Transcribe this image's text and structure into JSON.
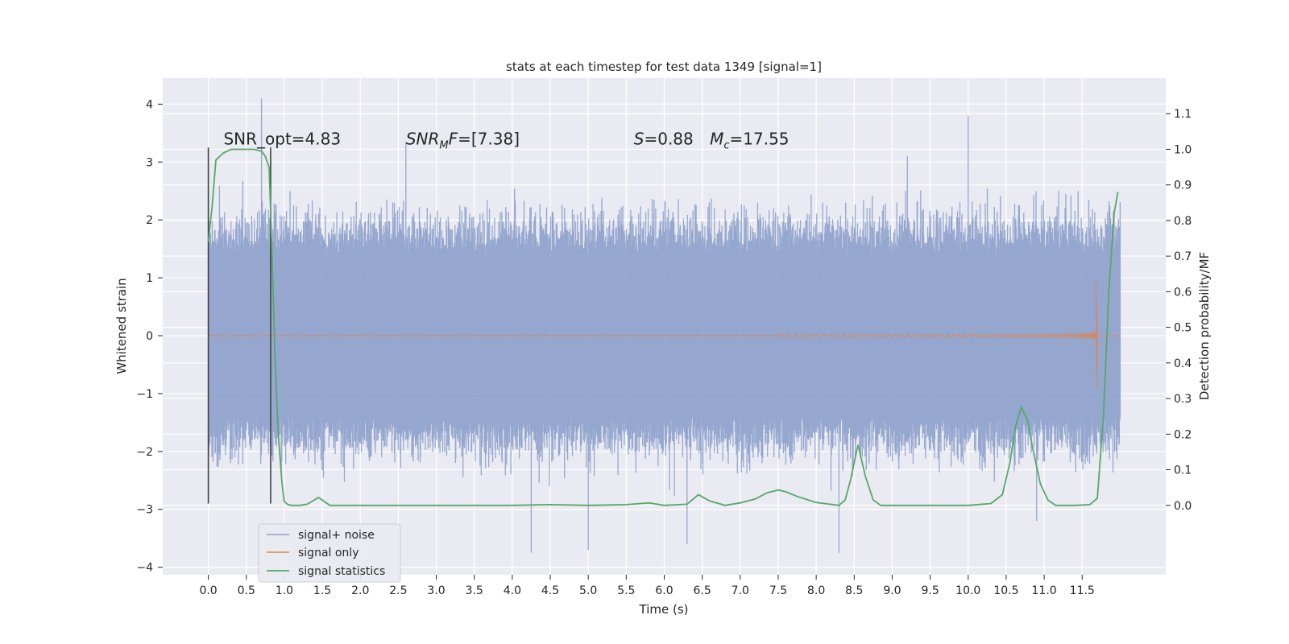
{
  "chart_data": {
    "type": "line",
    "title": "stats at each timestep for test data 1349 [signal=1]",
    "xlabel": "Time (s)",
    "ylabel_left": "Whitened strain",
    "ylabel_right": "Detection probability/MF",
    "xlim": [
      -0.6,
      12.6
    ],
    "ylim_left": [
      -4.13,
      4.45
    ],
    "ylim_right": [
      -0.195,
      1.2
    ],
    "x_ticks": [
      "0.0",
      "0.5",
      "1.0",
      "1.5",
      "2.0",
      "2.5",
      "3.0",
      "3.5",
      "4.0",
      "4.5",
      "5.0",
      "5.5",
      "6.0",
      "6.5",
      "7.0",
      "7.5",
      "8.0",
      "8.5",
      "9.0",
      "9.5",
      "10.0",
      "10.5",
      "11.0",
      "11.5"
    ],
    "y_left_ticks": [
      "−4",
      "−3",
      "−2",
      "−1",
      "0",
      "1",
      "2",
      "3",
      "4"
    ],
    "y_right_ticks": [
      "0.0",
      "0.1",
      "0.2",
      "0.3",
      "0.4",
      "0.5",
      "0.6",
      "0.7",
      "0.8",
      "0.9",
      "1.0",
      "1.1"
    ],
    "grid": true,
    "legend_position": "lower-left",
    "colors": {
      "background": "#eaeaf2",
      "grid": "#ffffff",
      "noise": "#8da0cb",
      "signal": "#dd8452",
      "stats": "#55a868",
      "marker": "#404040"
    },
    "annotations": {
      "snr_opt": "SNR_opt=4.83",
      "snr_mf_base": "SNR",
      "snr_mf_sub": "M",
      "snr_mf_rest": "F=[7.38]",
      "s_label": "S",
      "s_value": "=0.88",
      "mc_label": "M",
      "mc_sub": "c",
      "mc_value": "=17.55"
    },
    "series": [
      {
        "name": "signal+ noise",
        "kind": "strain",
        "x_range": [
          0,
          12.0
        ],
        "typical_peak": 1.4,
        "max": 4.1,
        "min": -3.75
      },
      {
        "name": "signal only",
        "kind": "strain",
        "merger_time": 11.7,
        "peak_amplitude": 0.95
      },
      {
        "name": "signal statistics",
        "kind": "probability",
        "x": [
          0.0,
          0.05,
          0.1,
          0.2,
          0.3,
          0.4,
          0.5,
          0.6,
          0.7,
          0.75,
          0.8,
          0.82,
          0.85,
          0.88,
          0.92,
          0.97,
          1.0,
          1.05,
          1.1,
          1.2,
          1.3,
          1.45,
          1.6,
          2.0,
          3.0,
          4.0,
          4.5,
          5.0,
          5.5,
          5.8,
          6.0,
          6.3,
          6.45,
          6.6,
          6.8,
          7.0,
          7.2,
          7.35,
          7.5,
          7.6,
          7.75,
          8.0,
          8.3,
          8.38,
          8.45,
          8.55,
          8.65,
          8.75,
          8.85,
          9.0,
          9.5,
          10.0,
          10.3,
          10.45,
          10.55,
          10.62,
          10.7,
          10.78,
          10.85,
          10.95,
          11.05,
          11.15,
          11.4,
          11.6,
          11.7,
          11.78,
          11.85,
          11.92,
          11.97
        ],
        "values": [
          0.74,
          0.84,
          0.97,
          0.99,
          1.0,
          1.0,
          1.0,
          1.0,
          0.995,
          0.98,
          0.95,
          0.83,
          0.62,
          0.4,
          0.2,
          0.06,
          0.01,
          0.002,
          0.0,
          0.0,
          0.003,
          0.022,
          0.0,
          0.0,
          0.0,
          0.0,
          0.002,
          0.0,
          0.002,
          0.007,
          0.0,
          0.003,
          0.03,
          0.012,
          0.0,
          0.007,
          0.018,
          0.035,
          0.043,
          0.038,
          0.025,
          0.008,
          0.0,
          0.015,
          0.07,
          0.17,
          0.08,
          0.015,
          0.0,
          0.0,
          0.0,
          0.0,
          0.005,
          0.03,
          0.12,
          0.22,
          0.275,
          0.24,
          0.16,
          0.06,
          0.015,
          0.0,
          0.0,
          0.002,
          0.02,
          0.25,
          0.6,
          0.82,
          0.88
        ]
      }
    ],
    "vertical_markers": [
      {
        "x": 0.0,
        "y_from": -2.9,
        "y_to": 3.25
      },
      {
        "x": 0.82,
        "y_from": -2.9,
        "y_to": 3.25
      }
    ]
  }
}
